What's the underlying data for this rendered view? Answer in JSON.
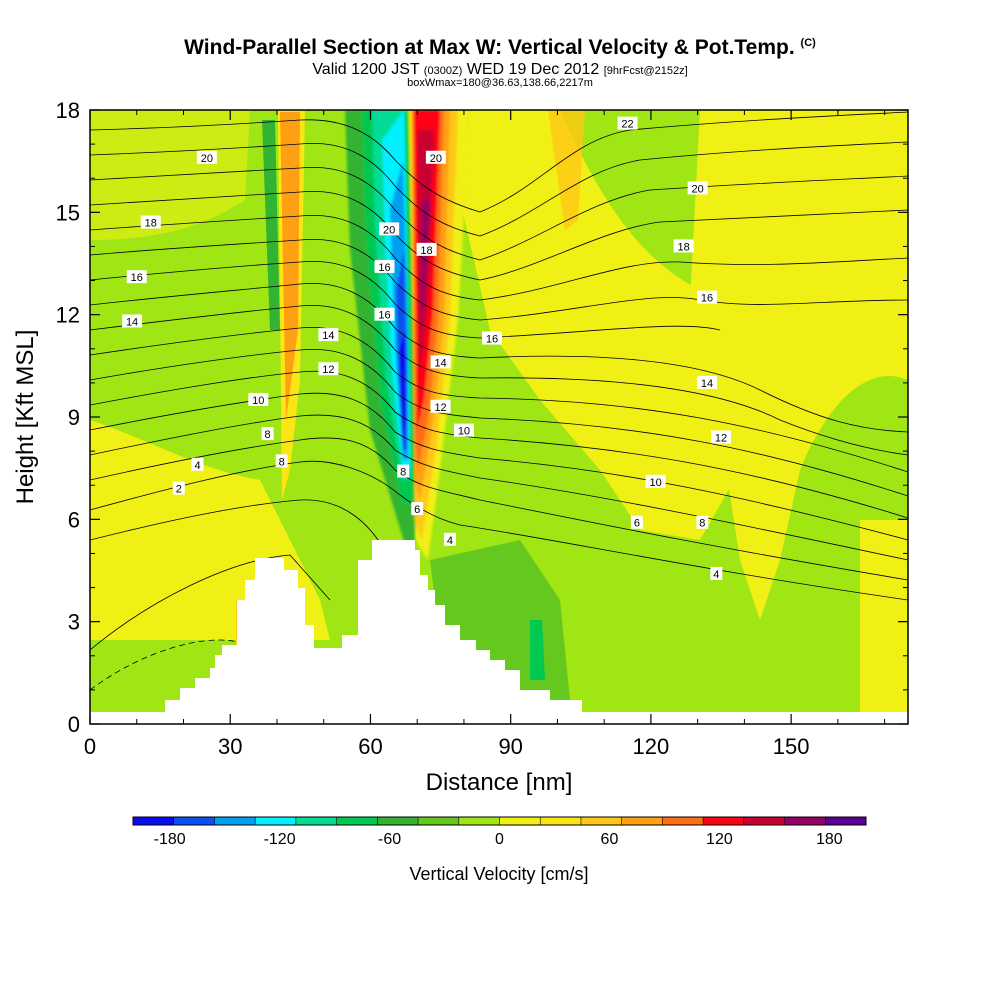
{
  "header": {
    "title": "Wind-Parallel Section at Max W: Vertical Velocity & Pot.Temp.",
    "copyright": "(C)",
    "valid_prefix": "Valid 1200 JST",
    "valid_zulu": "(0300Z)",
    "valid_date": "WED 19 Dec 2012",
    "forecast_info": "[9hrFcst@2152z]",
    "box_info": "boxWmax=180@36.63,138.66,2217m"
  },
  "chart_data": {
    "type": "heatmap",
    "xlabel": "Distance [nm]",
    "ylabel": "Height [Kft MSL]",
    "xlim": [
      0,
      175
    ],
    "ylim": [
      0,
      18
    ],
    "x_ticks": [
      0,
      30,
      60,
      90,
      120,
      150
    ],
    "y_ticks": [
      0,
      3,
      6,
      9,
      12,
      15,
      18
    ],
    "colorbar": {
      "label": "Vertical Velocity [cm/s]",
      "tick_labels": [
        -180,
        -120,
        -60,
        0,
        60,
        120,
        180
      ],
      "range": [
        -200,
        200
      ],
      "step": 20,
      "colors": [
        "#0a0af0",
        "#0a50f0",
        "#00a0f0",
        "#00f0ff",
        "#00dc96",
        "#00c850",
        "#32b432",
        "#64c81e",
        "#a0e614",
        "#f0f014",
        "#fae614",
        "#ffc814",
        "#ffa014",
        "#ff6e14",
        "#ff0014",
        "#c80032",
        "#960064",
        "#5a0096"
      ]
    },
    "updraft_core": {
      "x": 71,
      "height_range": [
        6.5,
        18
      ],
      "max_w": 180
    },
    "downdraft_core": {
      "x": 68,
      "height_range": [
        6.5,
        18
      ],
      "min_w": -180
    },
    "theta_contour_labels": [
      {
        "label": "22",
        "x": 115,
        "y": 17.6
      },
      {
        "label": "20",
        "x": 25,
        "y": 16.6
      },
      {
        "label": "20",
        "x": 74,
        "y": 16.6
      },
      {
        "label": "20",
        "x": 130,
        "y": 15.7
      },
      {
        "label": "18",
        "x": 13,
        "y": 14.7
      },
      {
        "label": "20",
        "x": 64,
        "y": 14.5
      },
      {
        "label": "18",
        "x": 72,
        "y": 13.9
      },
      {
        "label": "16",
        "x": 63,
        "y": 13.4
      },
      {
        "label": "18",
        "x": 127,
        "y": 14.0
      },
      {
        "label": "16",
        "x": 10,
        "y": 13.1
      },
      {
        "label": "16",
        "x": 132,
        "y": 12.5
      },
      {
        "label": "16",
        "x": 63,
        "y": 12.0
      },
      {
        "label": "14",
        "x": 9,
        "y": 11.8
      },
      {
        "label": "14",
        "x": 51,
        "y": 11.4
      },
      {
        "label": "16",
        "x": 86,
        "y": 11.3
      },
      {
        "label": "12",
        "x": 51,
        "y": 10.4
      },
      {
        "label": "14",
        "x": 75,
        "y": 10.6
      },
      {
        "label": "14",
        "x": 132,
        "y": 10.0
      },
      {
        "label": "10",
        "x": 36,
        "y": 9.5
      },
      {
        "label": "12",
        "x": 75,
        "y": 9.3
      },
      {
        "label": "8",
        "x": 38,
        "y": 8.5
      },
      {
        "label": "10",
        "x": 80,
        "y": 8.6
      },
      {
        "label": "12",
        "x": 135,
        "y": 8.4
      },
      {
        "label": "8",
        "x": 41,
        "y": 7.7
      },
      {
        "label": "4",
        "x": 23,
        "y": 7.6
      },
      {
        "label": "8",
        "x": 67,
        "y": 7.4
      },
      {
        "label": "10",
        "x": 121,
        "y": 7.1
      },
      {
        "label": "2",
        "x": 19,
        "y": 6.9
      },
      {
        "label": "6",
        "x": 70,
        "y": 6.3
      },
      {
        "label": "6",
        "x": 117,
        "y": 5.9
      },
      {
        "label": "8",
        "x": 131,
        "y": 5.9
      },
      {
        "label": "4",
        "x": 77,
        "y": 5.4
      },
      {
        "label": "4",
        "x": 134,
        "y": 4.4
      }
    ]
  }
}
